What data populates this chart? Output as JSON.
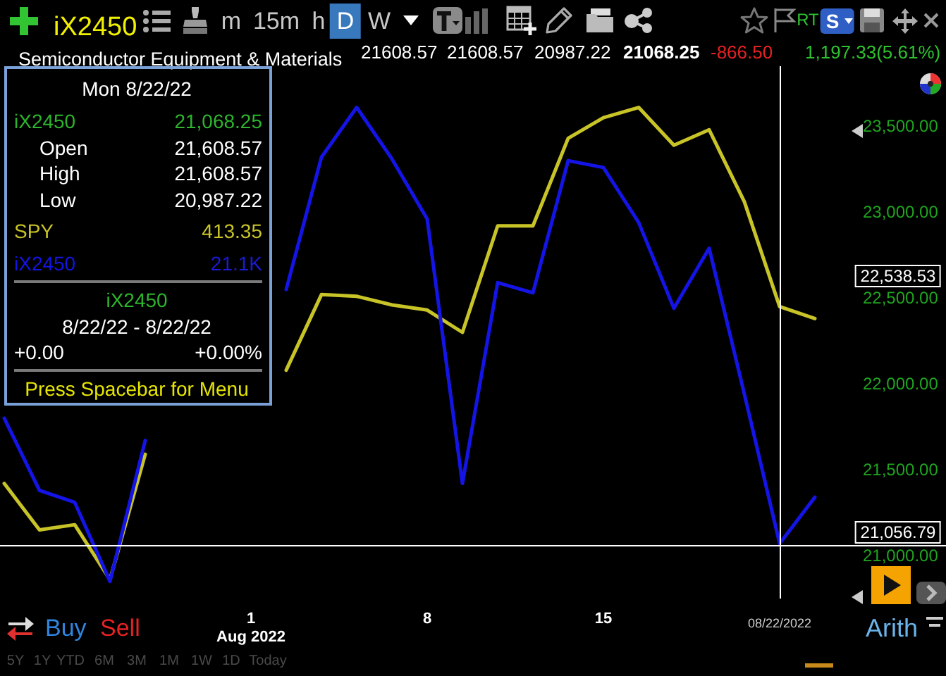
{
  "chart_data": {
    "type": "line",
    "title": "iX2450",
    "subtitle": "Semiconductor Equipment & Materials",
    "categories": [
      null,
      null,
      null,
      null,
      null,
      null,
      null,
      "1\nAug 2022",
      null,
      null,
      null,
      null,
      "8",
      null,
      null,
      null,
      null,
      "15",
      null,
      null,
      null,
      null,
      "08/22/2022",
      null
    ],
    "series": [
      {
        "name": "SPY",
        "color": "#c8c428",
        "values": [
          21420,
          21150,
          21180,
          20860,
          21590,
          null,
          null,
          null,
          22080,
          22520,
          22510,
          22460,
          22430,
          22300,
          22920,
          22920,
          23430,
          23550,
          23610,
          23390,
          23480,
          23060,
          22450,
          22380
        ]
      },
      {
        "name": "iX2450",
        "color": "#1414e6",
        "values": [
          21800,
          21380,
          21310,
          20850,
          21670,
          null,
          null,
          null,
          22550,
          23320,
          23610,
          23310,
          22960,
          21420,
          22590,
          22530,
          23300,
          23260,
          22940,
          22440,
          22790,
          21940,
          21070,
          21340
        ]
      }
    ],
    "ylim": [
      20750,
      23850
    ],
    "yticks": [
      {
        "value": 21000,
        "label": "21,000.00"
      },
      {
        "value": 21500,
        "label": "21,500.00"
      },
      {
        "value": 22000,
        "label": "22,000.00"
      },
      {
        "value": 22500,
        "label": "22,500.00"
      },
      {
        "value": 23000,
        "label": "23,000.00"
      },
      {
        "value": 23500,
        "label": "23,500.00"
      }
    ],
    "grid": false,
    "legend": "top left",
    "marker": "none",
    "line_style": "solid",
    "ref_lines": [
      {
        "axis": "y",
        "value": 21056.79,
        "color": "#ffffff"
      },
      {
        "axis": "x",
        "value": "08/22/2022",
        "color": "#ffffff"
      }
    ],
    "annotations": [
      "21608.57",
      "21608.57",
      "20987.22",
      "21068.25",
      "-866.50",
      "1,197.33(5.61%)",
      "m",
      "15m",
      "h",
      "D",
      "W",
      "RT",
      "S",
      "Mon 8/22/22",
      "iX2450",
      "21,068.25",
      "Open",
      "21,608.57",
      "High",
      "21,608.57",
      "Low",
      "20,987.22",
      "413.35",
      "21.1K",
      "iX2450",
      "8/22/22 - 8/22/22",
      "+0.00",
      "+0.00%",
      "Press Spacebar for Menu",
      "22,538.53",
      "21,056.79",
      "Buy",
      "Sell",
      "Arith",
      "5Y",
      "1Y",
      "YTD",
      "6M",
      "3M",
      "1M",
      "1W",
      "1D",
      "Today"
    ]
  }
}
